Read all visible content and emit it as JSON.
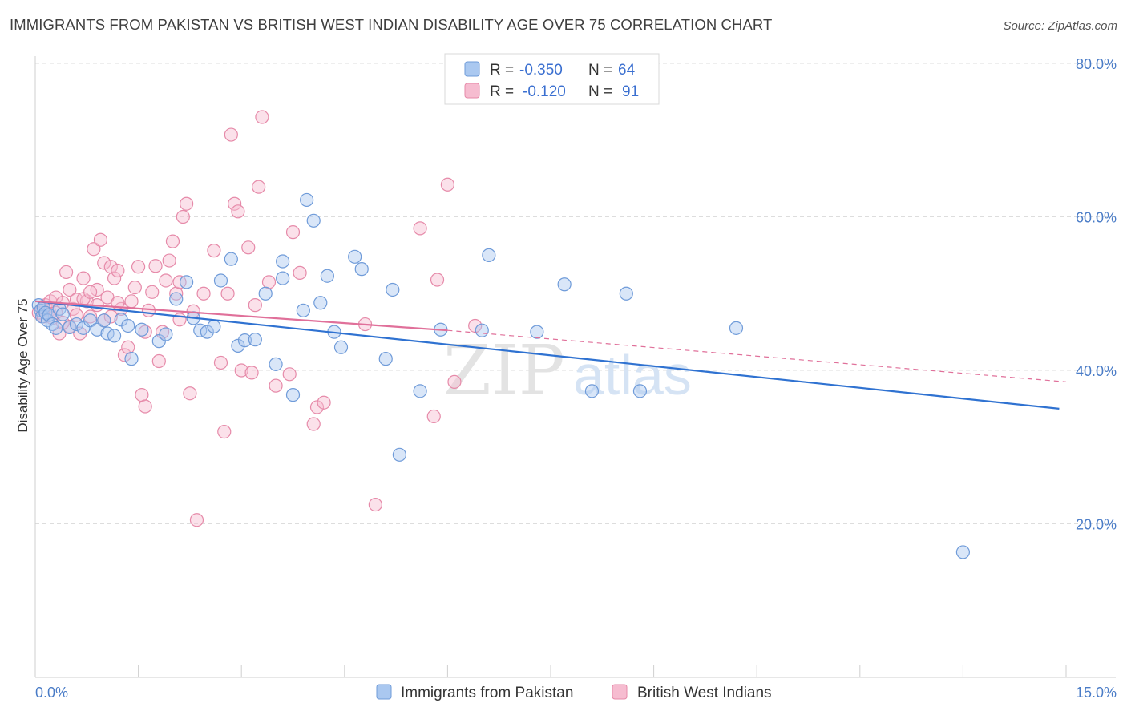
{
  "title": "IMMIGRANTS FROM PAKISTAN VS BRITISH WEST INDIAN DISABILITY AGE OVER 75 CORRELATION CHART",
  "source": "Source: ZipAtlas.com",
  "watermark": {
    "zip": "ZIP",
    "atlas": "atlas"
  },
  "colors": {
    "blue_fill": "#aac8f0",
    "blue_stroke": "#6f9bd9",
    "blue_line": "#2f72d1",
    "pink_fill": "#f6bcd0",
    "pink_stroke": "#e68aa9",
    "pink_line": "#e0709a",
    "grid": "#dddddd",
    "tick_text": "#4a7cc7"
  },
  "legend": {
    "rows": [
      {
        "r_label": "R =",
        "r_value": "-0.350",
        "n_label": "N =",
        "n_value": "64"
      },
      {
        "r_label": "R =",
        "r_value": "-0.120",
        "n_label": "N =",
        "n_value": "91"
      }
    ]
  },
  "chart_data": {
    "type": "scatter",
    "title": "IMMIGRANTS FROM PAKISTAN VS BRITISH WEST INDIAN DISABILITY AGE OVER 75 CORRELATION CHART",
    "xlabel": "",
    "ylabel": "Disability Age Over 75",
    "xlim": [
      0,
      15
    ],
    "ylim": [
      0,
      85
    ],
    "x_tick_labels": [
      "0.0%",
      "15.0%"
    ],
    "y_ticks": [
      20,
      40,
      60,
      80
    ],
    "y_tick_labels": [
      "20.0%",
      "40.0%",
      "60.0%",
      "80.0%"
    ],
    "grid": "horizontal dashed",
    "legend_position": "top-center",
    "series": [
      {
        "name": "Immigrants from Pakistan",
        "color": "#aac8f0",
        "R": -0.35,
        "N": 64,
        "trend": {
          "x": [
            0.0,
            14.9
          ],
          "y": [
            49.0,
            35.0
          ]
        },
        "points": [
          [
            0.05,
            48.5
          ],
          [
            0.08,
            47.8
          ],
          [
            0.1,
            47.0
          ],
          [
            0.12,
            48.2
          ],
          [
            0.15,
            47.5
          ],
          [
            0.18,
            46.5
          ],
          [
            0.2,
            47.2
          ],
          [
            0.25,
            46.0
          ],
          [
            0.3,
            45.5
          ],
          [
            0.35,
            48.0
          ],
          [
            0.4,
            47.3
          ],
          [
            0.5,
            45.6
          ],
          [
            0.6,
            46.0
          ],
          [
            0.7,
            45.5
          ],
          [
            0.8,
            46.5
          ],
          [
            0.9,
            45.3
          ],
          [
            1.0,
            46.5
          ],
          [
            1.05,
            44.8
          ],
          [
            1.15,
            44.5
          ],
          [
            1.25,
            46.6
          ],
          [
            1.35,
            45.8
          ],
          [
            1.4,
            41.5
          ],
          [
            1.55,
            45.3
          ],
          [
            1.8,
            43.8
          ],
          [
            1.9,
            44.7
          ],
          [
            2.05,
            49.3
          ],
          [
            2.2,
            51.5
          ],
          [
            2.3,
            46.8
          ],
          [
            2.4,
            45.2
          ],
          [
            2.5,
            45.0
          ],
          [
            2.6,
            45.7
          ],
          [
            2.7,
            51.7
          ],
          [
            2.85,
            54.5
          ],
          [
            2.95,
            43.2
          ],
          [
            3.05,
            43.9
          ],
          [
            3.2,
            44.0
          ],
          [
            3.35,
            50.0
          ],
          [
            3.5,
            40.8
          ],
          [
            3.6,
            54.2
          ],
          [
            3.75,
            36.8
          ],
          [
            3.95,
            62.2
          ],
          [
            4.05,
            59.5
          ],
          [
            4.15,
            48.8
          ],
          [
            4.25,
            52.3
          ],
          [
            4.35,
            45.0
          ],
          [
            4.45,
            43.0
          ],
          [
            4.65,
            54.8
          ],
          [
            4.75,
            53.2
          ],
          [
            5.1,
            41.5
          ],
          [
            5.2,
            50.5
          ],
          [
            5.3,
            29.0
          ],
          [
            5.6,
            37.3
          ],
          [
            5.9,
            45.3
          ],
          [
            6.5,
            45.2
          ],
          [
            6.6,
            55.0
          ],
          [
            7.3,
            45.0
          ],
          [
            7.7,
            51.2
          ],
          [
            8.1,
            37.3
          ],
          [
            8.6,
            50.0
          ],
          [
            8.8,
            37.3
          ],
          [
            10.2,
            45.5
          ],
          [
            3.9,
            47.8
          ],
          [
            3.6,
            52.0
          ],
          [
            13.5,
            16.3
          ]
        ]
      },
      {
        "name": "British West Indians",
        "color": "#f6bcd0",
        "R": -0.12,
        "N": 91,
        "trend": {
          "x": [
            0.0,
            6.0
          ],
          "y": [
            49.0,
            45.2
          ]
        },
        "trend_extension": {
          "x": [
            6.0,
            15.0
          ],
          "y": [
            45.2,
            38.5
          ]
        },
        "points": [
          [
            0.05,
            47.5
          ],
          [
            0.1,
            48.0
          ],
          [
            0.12,
            47.0
          ],
          [
            0.15,
            48.5
          ],
          [
            0.2,
            47.8
          ],
          [
            0.22,
            49.0
          ],
          [
            0.25,
            46.8
          ],
          [
            0.3,
            49.5
          ],
          [
            0.35,
            44.8
          ],
          [
            0.4,
            48.8
          ],
          [
            0.45,
            52.8
          ],
          [
            0.5,
            50.5
          ],
          [
            0.55,
            48.0
          ],
          [
            0.6,
            49.2
          ],
          [
            0.65,
            44.8
          ],
          [
            0.7,
            52.0
          ],
          [
            0.75,
            49.0
          ],
          [
            0.8,
            47.0
          ],
          [
            0.85,
            55.8
          ],
          [
            0.9,
            50.5
          ],
          [
            0.95,
            57.0
          ],
          [
            1.0,
            54.0
          ],
          [
            1.05,
            49.5
          ],
          [
            1.1,
            53.5
          ],
          [
            1.15,
            52.0
          ],
          [
            1.2,
            53.0
          ],
          [
            1.25,
            48.0
          ],
          [
            1.3,
            42.0
          ],
          [
            1.35,
            43.0
          ],
          [
            1.4,
            49.0
          ],
          [
            1.45,
            50.8
          ],
          [
            1.5,
            53.5
          ],
          [
            1.55,
            36.8
          ],
          [
            1.6,
            35.3
          ],
          [
            1.65,
            47.8
          ],
          [
            1.7,
            50.2
          ],
          [
            1.75,
            53.6
          ],
          [
            1.8,
            41.2
          ],
          [
            1.85,
            45.0
          ],
          [
            1.9,
            51.7
          ],
          [
            1.95,
            54.3
          ],
          [
            2.0,
            56.8
          ],
          [
            2.05,
            50.0
          ],
          [
            2.1,
            51.5
          ],
          [
            2.15,
            60.0
          ],
          [
            2.2,
            61.7
          ],
          [
            2.25,
            37.0
          ],
          [
            2.3,
            47.7
          ],
          [
            2.35,
            20.5
          ],
          [
            2.45,
            50.0
          ],
          [
            2.6,
            55.6
          ],
          [
            2.7,
            41.0
          ],
          [
            2.75,
            32.0
          ],
          [
            2.8,
            50.0
          ],
          [
            2.85,
            70.7
          ],
          [
            2.9,
            61.7
          ],
          [
            2.95,
            60.7
          ],
          [
            3.0,
            40.0
          ],
          [
            3.1,
            56.0
          ],
          [
            3.15,
            39.7
          ],
          [
            3.2,
            48.5
          ],
          [
            3.25,
            63.9
          ],
          [
            3.3,
            73.0
          ],
          [
            3.4,
            51.5
          ],
          [
            3.5,
            38.0
          ],
          [
            3.7,
            39.5
          ],
          [
            3.75,
            58.0
          ],
          [
            3.85,
            52.7
          ],
          [
            4.05,
            33.0
          ],
          [
            4.1,
            35.2
          ],
          [
            4.2,
            35.8
          ],
          [
            4.8,
            46.0
          ],
          [
            4.95,
            22.5
          ],
          [
            5.6,
            58.5
          ],
          [
            5.8,
            34.0
          ],
          [
            5.85,
            51.8
          ],
          [
            6.0,
            64.2
          ],
          [
            6.1,
            38.5
          ],
          [
            6.4,
            45.8
          ],
          [
            1.0,
            46.5
          ],
          [
            0.3,
            47.5
          ],
          [
            0.5,
            45.7
          ],
          [
            0.7,
            49.3
          ],
          [
            0.9,
            48.5
          ],
          [
            1.1,
            47.0
          ],
          [
            1.6,
            45.0
          ],
          [
            2.1,
            46.6
          ],
          [
            0.4,
            46.2
          ],
          [
            0.8,
            50.2
          ],
          [
            1.2,
            48.8
          ],
          [
            0.6,
            47.2
          ]
        ]
      }
    ]
  }
}
